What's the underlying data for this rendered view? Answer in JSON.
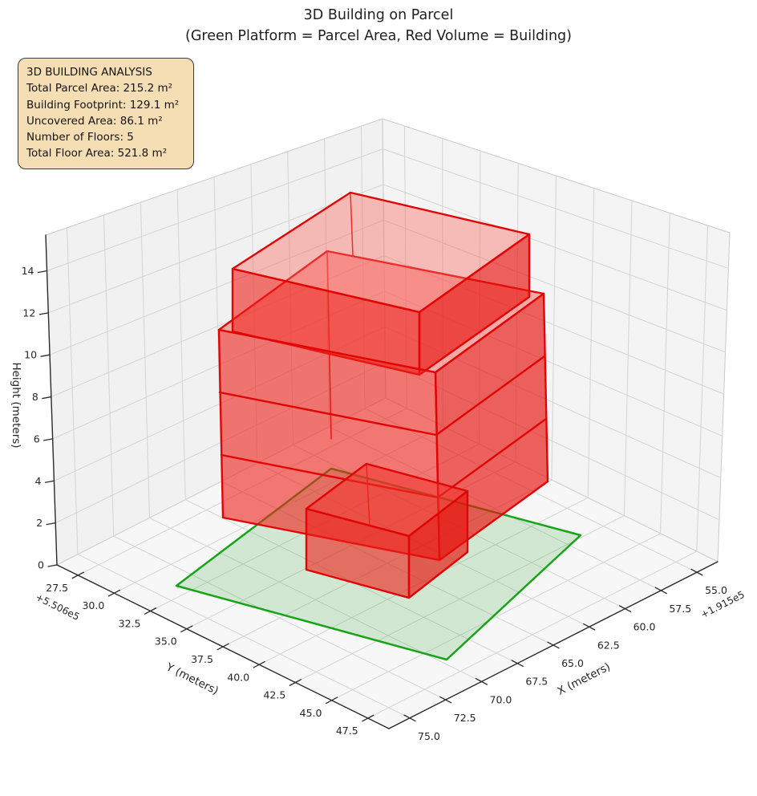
{
  "title": {
    "line1": "3D Building on Parcel",
    "line2": "(Green Platform = Parcel Area, Red Volume = Building)"
  },
  "info_box": {
    "lines": [
      "3D BUILDING ANALYSIS",
      "Total Parcel Area: 215.2 m²",
      "Building Footprint: 129.1 m²",
      "Uncovered Area: 86.1 m²",
      "Number of Floors: 5",
      "Total Floor Area: 521.8 m²"
    ]
  },
  "axes": {
    "x": {
      "label": "X (meters)",
      "ticks": [
        "75.0",
        "72.5",
        "70.0",
        "67.5",
        "65.0",
        "62.5",
        "60.0",
        "57.5",
        "55.0"
      ],
      "offset_text": "+1.915e5"
    },
    "y": {
      "label": "Y (meters)",
      "ticks": [
        "27.5",
        "30.0",
        "32.5",
        "35.0",
        "37.5",
        "40.0",
        "42.5",
        "45.0",
        "47.5"
      ],
      "offset_text": "+5.506e5"
    },
    "z": {
      "label": "Height (meters)",
      "ticks": [
        "0",
        "2",
        "4",
        "6",
        "8",
        "10",
        "12",
        "14"
      ]
    }
  },
  "colors": {
    "building_edge": "#e10505",
    "building_face": "#ee2019",
    "parcel_edge": "#17a517",
    "parcel_fill": "rgba(46,160,46,0.18)",
    "info_box_bg": "#f5deb3",
    "grid": "#d4d4d4",
    "spine": "#2b2b2b",
    "tick_text": "#262626"
  },
  "chart_data": {
    "type": "3d-building",
    "title": "3D Building on Parcel",
    "subtitle": "(Green Platform = Parcel Area, Red Volume = Building)",
    "x_axis": {
      "label": "X (meters)",
      "ticks": [
        75.0,
        72.5,
        70.0,
        67.5,
        65.0,
        62.5,
        60.0,
        57.5,
        55.0
      ],
      "offset": 191500,
      "true_range_m": [
        191555.0,
        191575.0
      ]
    },
    "y_axis": {
      "label": "Y (meters)",
      "ticks": [
        27.5,
        30.0,
        32.5,
        35.0,
        37.5,
        40.0,
        42.5,
        45.0,
        47.5
      ],
      "offset": 550600,
      "true_range_m": [
        550627.5,
        550647.5
      ]
    },
    "z_axis": {
      "label": "Height (meters)",
      "ticks": [
        0,
        2,
        4,
        6,
        8,
        10,
        12,
        14
      ],
      "range": [
        0,
        15.7
      ]
    },
    "analysis": {
      "total_parcel_area_m2": 215.2,
      "building_footprint_m2": 129.1,
      "uncovered_area_m2": 86.1,
      "number_of_floors": 5,
      "total_floor_area_m2": 521.8
    },
    "parcel": {
      "shape": "quadrilateral platform",
      "z_m": 0,
      "color": "green"
    },
    "building": {
      "color": "red",
      "floor_height_m": 3,
      "parts": [
        "main mass (3 visible floor bands)",
        "upper setback box",
        "small front annex box"
      ]
    }
  }
}
